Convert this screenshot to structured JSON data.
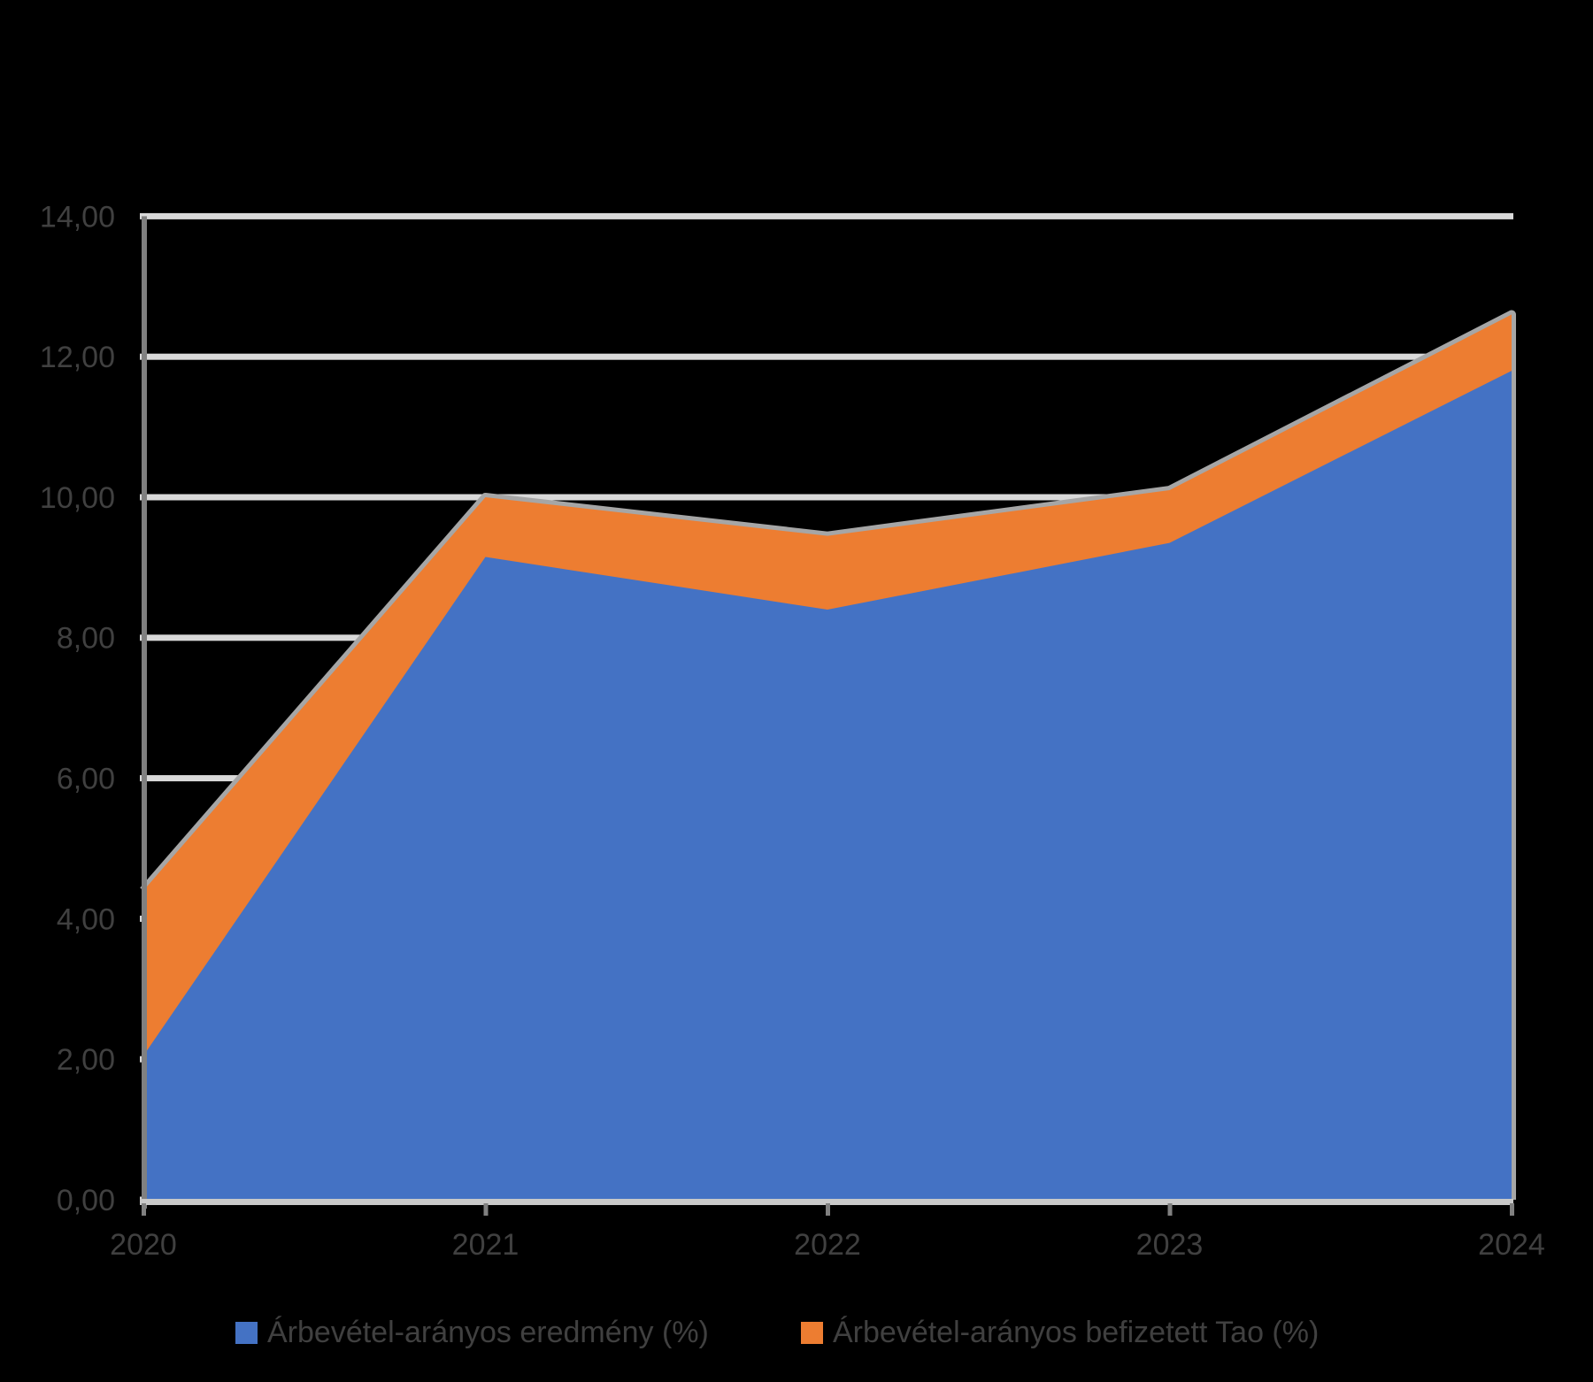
{
  "page": {
    "background": "#000000",
    "title": ""
  },
  "colors": {
    "series_blue": "#4472C4",
    "series_orange": "#ED7D31",
    "gridline": "#D9D9D9",
    "axis_line_light": "#C9C9C9",
    "axis_line_dark": "#808080",
    "area_outline_halo": "#A6A6A6",
    "label_text": "#404040"
  },
  "chart_data": {
    "type": "area",
    "stacked": true,
    "title": "",
    "xlabel": "",
    "ylabel": "",
    "grid": true,
    "legend_position": "bottom",
    "decimal_separator": ",",
    "categories": [
      "2020",
      "2021",
      "2022",
      "2023",
      "2024"
    ],
    "series": [
      {
        "name": "Árbevétel-arányos eredmény (%)",
        "color": "#4472C4",
        "values": [
          2.05,
          9.15,
          8.4,
          9.35,
          11.8
        ]
      },
      {
        "name": "Árbevétel-arányos befizetett Tao (%)",
        "color": "#ED7D31",
        "values": [
          2.35,
          0.85,
          1.05,
          0.75,
          0.8
        ]
      }
    ],
    "stacked_totals": [
      4.4,
      10.0,
      9.45,
      10.1,
      12.6
    ],
    "ylim": [
      0,
      14
    ],
    "y_tick_step": 2,
    "y_ticks": [
      {
        "value": 14,
        "label": "14,00"
      },
      {
        "value": 12,
        "label": "12,00"
      },
      {
        "value": 10,
        "label": "10,00"
      },
      {
        "value": 8,
        "label": "8,00"
      },
      {
        "value": 6,
        "label": "6,00"
      },
      {
        "value": 4,
        "label": "4,00"
      },
      {
        "value": 2,
        "label": "2,00"
      },
      {
        "value": 0,
        "label": "0,00"
      }
    ]
  },
  "legend": {
    "items": [
      {
        "label": "Árbevétel-arányos eredmény (%)",
        "color": "#4472C4"
      },
      {
        "label": "Árbevétel-arányos befizetett Tao (%)",
        "color": "#ED7D31"
      }
    ]
  }
}
